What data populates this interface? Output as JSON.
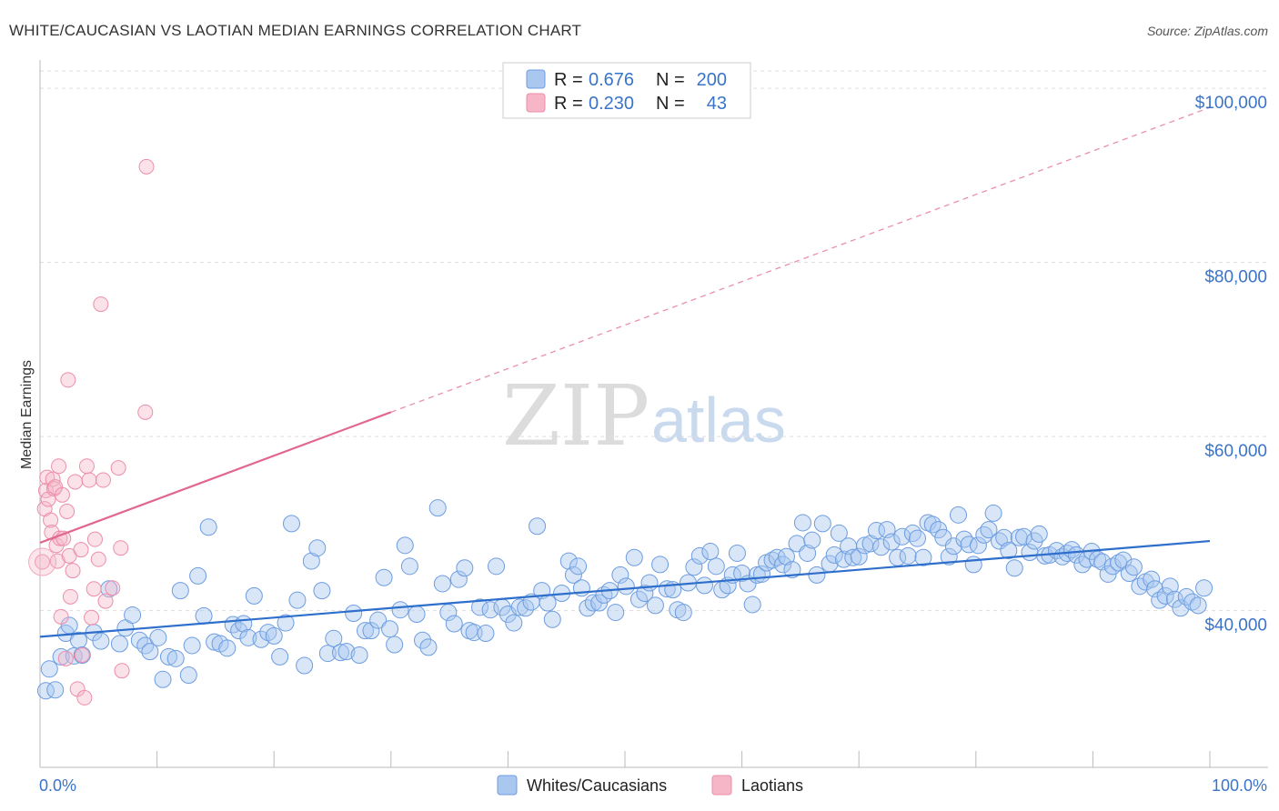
{
  "header": {
    "title": "WHITE/CAUCASIAN VS LAOTIAN MEDIAN EARNINGS CORRELATION CHART",
    "source": "Source: ZipAtlas.com"
  },
  "watermark": {
    "zip": "ZIP",
    "atlas": "atlas"
  },
  "legend": {
    "rows": [
      {
        "r_label": "R =",
        "r_value": "0.676",
        "n_label": "N =",
        "n_value": "200",
        "color": "#a9c7ef"
      },
      {
        "r_label": "R =",
        "r_value": "0.230",
        "n_label": "N =",
        "n_value": "43",
        "color": "#f6b6c8"
      }
    ]
  },
  "bottom_legend": [
    {
      "label": "Whites/Caucasians",
      "color": "#a9c7ef"
    },
    {
      "label": "Laotians",
      "color": "#f6b6c8"
    }
  ],
  "chart_data": {
    "type": "scatter",
    "title": "WHITE/CAUCASIAN VS LAOTIAN MEDIAN EARNINGS CORRELATION CHART",
    "xlabel": "",
    "ylabel": "Median Earnings",
    "xlim": [
      0,
      100
    ],
    "ylim": [
      22000,
      102000
    ],
    "x_tick_labels": [
      "0.0%",
      "100.0%"
    ],
    "y_ticks": [
      40000,
      60000,
      80000,
      100000
    ],
    "y_tick_labels": [
      "$40,000",
      "$60,000",
      "$80,000",
      "$100,000"
    ],
    "grid": true,
    "legend_position": "top-center",
    "series": [
      {
        "name": "Whites/Caucasians",
        "color": "#4a86d8",
        "r": 0.676,
        "n": 200,
        "trend": {
          "x": [
            0,
            100
          ],
          "y": [
            37000,
            48000
          ],
          "style": "solid"
        },
        "points": [
          [
            0.5,
            30800
          ],
          [
            0.8,
            33300
          ],
          [
            1.3,
            30900
          ],
          [
            1.8,
            34700
          ],
          [
            2.2,
            37400
          ],
          [
            2.5,
            38300
          ],
          [
            2.9,
            34800
          ],
          [
            3.3,
            36600
          ],
          [
            3.6,
            34900
          ],
          [
            4.6,
            37500
          ],
          [
            5.2,
            36500
          ],
          [
            5.9,
            42500
          ],
          [
            6.8,
            36200
          ],
          [
            7.3,
            38000
          ],
          [
            7.9,
            39500
          ],
          [
            8.5,
            36600
          ],
          [
            9.0,
            36000
          ],
          [
            9.4,
            35300
          ],
          [
            10.1,
            36900
          ],
          [
            10.5,
            32100
          ],
          [
            11.0,
            34700
          ],
          [
            11.6,
            34500
          ],
          [
            12.0,
            42300
          ],
          [
            12.7,
            32600
          ],
          [
            13.0,
            36000
          ],
          [
            13.5,
            44000
          ],
          [
            14.0,
            39400
          ],
          [
            14.4,
            49600
          ],
          [
            14.9,
            36400
          ],
          [
            15.4,
            36200
          ],
          [
            16.0,
            35700
          ],
          [
            16.5,
            38400
          ],
          [
            17.0,
            37700
          ],
          [
            17.4,
            38500
          ],
          [
            17.8,
            36900
          ],
          [
            18.3,
            41700
          ],
          [
            18.9,
            36700
          ],
          [
            19.5,
            37500
          ],
          [
            20.0,
            37100
          ],
          [
            20.5,
            34700
          ],
          [
            21.0,
            38600
          ],
          [
            21.5,
            50000
          ],
          [
            22.0,
            41200
          ],
          [
            22.6,
            33700
          ],
          [
            23.2,
            45700
          ],
          [
            23.7,
            47200
          ],
          [
            24.1,
            42300
          ],
          [
            24.6,
            35100
          ],
          [
            25.1,
            36800
          ],
          [
            25.7,
            35200
          ],
          [
            26.2,
            35300
          ],
          [
            26.8,
            39700
          ],
          [
            27.3,
            34900
          ],
          [
            27.8,
            37700
          ],
          [
            28.3,
            37700
          ],
          [
            28.9,
            38900
          ],
          [
            29.4,
            43800
          ],
          [
            29.9,
            37900
          ],
          [
            30.3,
            36100
          ],
          [
            30.8,
            40100
          ],
          [
            31.2,
            47500
          ],
          [
            31.6,
            45100
          ],
          [
            32.2,
            39600
          ],
          [
            32.7,
            36600
          ],
          [
            33.2,
            35800
          ],
          [
            34.0,
            51800
          ],
          [
            34.4,
            43100
          ],
          [
            34.9,
            39800
          ],
          [
            35.4,
            38500
          ],
          [
            35.8,
            43600
          ],
          [
            36.3,
            44900
          ],
          [
            36.7,
            37700
          ],
          [
            37.1,
            37500
          ],
          [
            37.6,
            40400
          ],
          [
            38.1,
            37400
          ],
          [
            38.5,
            40100
          ],
          [
            39.0,
            45100
          ],
          [
            39.5,
            40400
          ],
          [
            40.0,
            39600
          ],
          [
            40.5,
            38600
          ],
          [
            41.0,
            40400
          ],
          [
            41.5,
            40300
          ],
          [
            42.0,
            41000
          ],
          [
            42.5,
            49700
          ],
          [
            42.9,
            42300
          ],
          [
            43.4,
            40900
          ],
          [
            43.8,
            39000
          ],
          [
            44.6,
            42000
          ],
          [
            45.2,
            45700
          ],
          [
            45.6,
            44100
          ],
          [
            46.0,
            45100
          ],
          [
            46.3,
            42600
          ],
          [
            46.8,
            40300
          ],
          [
            47.3,
            40900
          ],
          [
            47.8,
            40900
          ],
          [
            48.2,
            41800
          ],
          [
            48.7,
            42300
          ],
          [
            49.2,
            39800
          ],
          [
            49.6,
            44100
          ],
          [
            50.1,
            42800
          ],
          [
            50.8,
            46100
          ],
          [
            51.2,
            41300
          ],
          [
            51.7,
            42000
          ],
          [
            52.1,
            43200
          ],
          [
            52.6,
            40600
          ],
          [
            53.0,
            45300
          ],
          [
            53.6,
            42500
          ],
          [
            54.1,
            42400
          ],
          [
            54.5,
            40100
          ],
          [
            55.0,
            39800
          ],
          [
            55.4,
            43200
          ],
          [
            55.9,
            45000
          ],
          [
            56.4,
            46300
          ],
          [
            56.8,
            42900
          ],
          [
            57.3,
            46800
          ],
          [
            57.8,
            45100
          ],
          [
            58.3,
            42400
          ],
          [
            58.8,
            42900
          ],
          [
            59.2,
            44100
          ],
          [
            59.6,
            46600
          ],
          [
            60.0,
            44300
          ],
          [
            60.5,
            43100
          ],
          [
            60.9,
            40700
          ],
          [
            61.3,
            44100
          ],
          [
            61.7,
            44200
          ],
          [
            62.1,
            45500
          ],
          [
            62.6,
            45800
          ],
          [
            63.0,
            46100
          ],
          [
            63.5,
            45300
          ],
          [
            63.8,
            46200
          ],
          [
            64.3,
            44700
          ],
          [
            64.7,
            47700
          ],
          [
            65.2,
            50100
          ],
          [
            65.6,
            46600
          ],
          [
            66.0,
            48100
          ],
          [
            66.4,
            44100
          ],
          [
            66.9,
            50000
          ],
          [
            67.5,
            45400
          ],
          [
            67.9,
            46400
          ],
          [
            68.3,
            48900
          ],
          [
            68.7,
            45900
          ],
          [
            69.1,
            47400
          ],
          [
            69.5,
            46100
          ],
          [
            70.0,
            46200
          ],
          [
            70.5,
            47500
          ],
          [
            71.0,
            47700
          ],
          [
            71.5,
            49200
          ],
          [
            71.9,
            47300
          ],
          [
            72.4,
            49300
          ],
          [
            72.8,
            47900
          ],
          [
            73.3,
            46100
          ],
          [
            73.7,
            48500
          ],
          [
            74.2,
            46300
          ],
          [
            74.6,
            48900
          ],
          [
            75.0,
            48300
          ],
          [
            75.5,
            46100
          ],
          [
            75.9,
            50100
          ],
          [
            76.3,
            49900
          ],
          [
            76.8,
            49300
          ],
          [
            77.2,
            48400
          ],
          [
            77.7,
            46200
          ],
          [
            78.1,
            47400
          ],
          [
            78.5,
            51000
          ],
          [
            79.0,
            48200
          ],
          [
            79.4,
            47600
          ],
          [
            79.8,
            45300
          ],
          [
            80.2,
            47500
          ],
          [
            80.7,
            48700
          ],
          [
            81.1,
            49300
          ],
          [
            81.5,
            51200
          ],
          [
            82.0,
            48000
          ],
          [
            82.4,
            48400
          ],
          [
            82.8,
            46900
          ],
          [
            83.3,
            44900
          ],
          [
            83.7,
            48400
          ],
          [
            84.1,
            48500
          ],
          [
            84.6,
            46700
          ],
          [
            85.0,
            48000
          ],
          [
            85.4,
            48800
          ],
          [
            85.9,
            46300
          ],
          [
            86.3,
            46400
          ],
          [
            86.9,
            46900
          ],
          [
            87.4,
            46200
          ],
          [
            87.8,
            46600
          ],
          [
            88.2,
            47000
          ],
          [
            88.6,
            46400
          ],
          [
            89.1,
            45300
          ],
          [
            89.5,
            45900
          ],
          [
            89.9,
            46800
          ],
          [
            90.4,
            45900
          ],
          [
            90.8,
            45600
          ],
          [
            91.3,
            44200
          ],
          [
            91.7,
            45100
          ],
          [
            92.2,
            45500
          ],
          [
            92.6,
            45800
          ],
          [
            93.1,
            44300
          ],
          [
            93.5,
            45000
          ],
          [
            94.0,
            42800
          ],
          [
            94.5,
            43300
          ],
          [
            95.0,
            43600
          ],
          [
            95.3,
            42500
          ],
          [
            95.7,
            41200
          ],
          [
            96.2,
            41700
          ],
          [
            96.6,
            42800
          ],
          [
            97.0,
            41300
          ],
          [
            97.5,
            40300
          ],
          [
            98.0,
            41600
          ],
          [
            98.5,
            41000
          ],
          [
            99.0,
            40600
          ],
          [
            99.5,
            42600
          ]
        ]
      },
      {
        "name": "Laotians",
        "color": "#e8749a",
        "r": 0.23,
        "n": 43,
        "trend": {
          "x": [
            0,
            30
          ],
          "y": [
            47800,
            62800
          ],
          "style": "solid",
          "extended": {
            "x": [
              30,
              100
            ],
            "y": [
              62800,
              97800
            ],
            "style": "dashed"
          }
        },
        "points": [
          [
            0.2,
            45600
          ],
          [
            0.4,
            51700
          ],
          [
            0.5,
            53800
          ],
          [
            0.6,
            55300
          ],
          [
            0.7,
            52800
          ],
          [
            0.9,
            50400
          ],
          [
            1.0,
            49000
          ],
          [
            1.1,
            55100
          ],
          [
            1.2,
            54000
          ],
          [
            1.3,
            54200
          ],
          [
            1.4,
            47500
          ],
          [
            1.5,
            45700
          ],
          [
            1.6,
            56600
          ],
          [
            1.7,
            48300
          ],
          [
            1.8,
            39300
          ],
          [
            1.9,
            53300
          ],
          [
            2.0,
            48300
          ],
          [
            2.2,
            34500
          ],
          [
            2.3,
            51400
          ],
          [
            2.4,
            66500
          ],
          [
            2.5,
            46300
          ],
          [
            2.6,
            41600
          ],
          [
            2.8,
            44600
          ],
          [
            3.0,
            54800
          ],
          [
            3.2,
            31000
          ],
          [
            3.5,
            47000
          ],
          [
            3.6,
            34900
          ],
          [
            3.8,
            30000
          ],
          [
            4.0,
            56600
          ],
          [
            4.2,
            55000
          ],
          [
            4.4,
            39200
          ],
          [
            4.6,
            42500
          ],
          [
            4.7,
            48200
          ],
          [
            5.0,
            45900
          ],
          [
            5.2,
            75200
          ],
          [
            5.4,
            55000
          ],
          [
            5.6,
            41100
          ],
          [
            6.2,
            42600
          ],
          [
            6.7,
            56400
          ],
          [
            6.9,
            47200
          ],
          [
            7.0,
            33100
          ],
          [
            9.1,
            91000
          ],
          [
            9.0,
            62800
          ]
        ]
      }
    ]
  }
}
